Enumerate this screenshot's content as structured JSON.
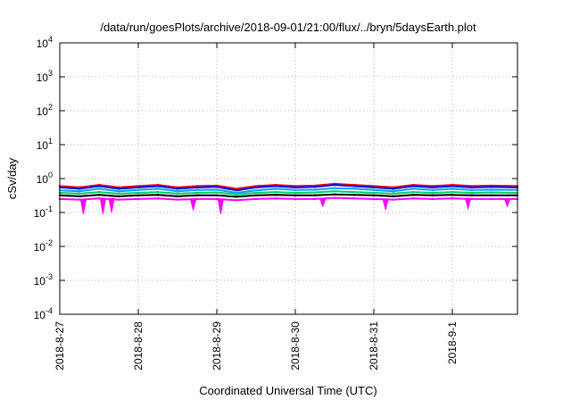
{
  "chart_data": {
    "type": "line",
    "title": "/data/run/goesPlots/archive/2018-09-01/21:00/flux/../bryn/5daysEarth.plot",
    "xlabel": "Coordinated Universal Time (UTC)",
    "ylabel": "cSv/day",
    "yscale": "log",
    "ylim": [
      0.0001,
      10000
    ],
    "xlim_days": [
      0,
      5.83
    ],
    "grid": true,
    "legend": "none",
    "x_tick_labels": [
      "2018-8-27",
      "2018-8-28",
      "2018-8-29",
      "2018-8-30",
      "2018-8-31",
      "2018-9-1"
    ],
    "x_tick_days": [
      0,
      1,
      2,
      3,
      4,
      5
    ],
    "y_ticks": [
      {
        "value": 0.0001,
        "base": "10",
        "exp": "-4"
      },
      {
        "value": 0.001,
        "base": "10",
        "exp": "-3"
      },
      {
        "value": 0.01,
        "base": "10",
        "exp": "-2"
      },
      {
        "value": 0.1,
        "base": "10",
        "exp": "-1"
      },
      {
        "value": 1,
        "base": "10",
        "exp": "0"
      },
      {
        "value": 10,
        "base": "10",
        "exp": "1"
      },
      {
        "value": 100,
        "base": "10",
        "exp": "2"
      },
      {
        "value": 1000,
        "base": "10",
        "exp": "3"
      },
      {
        "value": 10000,
        "base": "10",
        "exp": "4"
      }
    ],
    "x": [
      0.0,
      0.25,
      0.5,
      0.75,
      1.0,
      1.25,
      1.5,
      1.75,
      2.0,
      2.25,
      2.5,
      2.75,
      3.0,
      3.25,
      3.5,
      3.75,
      4.0,
      4.25,
      4.5,
      4.75,
      5.0,
      5.25,
      5.5,
      5.83
    ],
    "series": [
      {
        "color": "#ff0000",
        "values": [
          0.6,
          0.55,
          0.65,
          0.55,
          0.6,
          0.65,
          0.55,
          0.6,
          0.62,
          0.5,
          0.6,
          0.65,
          0.6,
          0.62,
          0.7,
          0.65,
          0.6,
          0.55,
          0.65,
          0.6,
          0.65,
          0.6,
          0.62,
          0.6
        ]
      },
      {
        "color": "#0000ff",
        "values": [
          0.55,
          0.5,
          0.6,
          0.5,
          0.55,
          0.6,
          0.5,
          0.55,
          0.57,
          0.45,
          0.55,
          0.6,
          0.55,
          0.57,
          0.65,
          0.6,
          0.55,
          0.5,
          0.6,
          0.55,
          0.6,
          0.55,
          0.57,
          0.55
        ]
      },
      {
        "color": "#00a0ff",
        "values": [
          0.45,
          0.42,
          0.5,
          0.42,
          0.46,
          0.5,
          0.42,
          0.46,
          0.47,
          0.38,
          0.45,
          0.5,
          0.46,
          0.47,
          0.52,
          0.5,
          0.46,
          0.42,
          0.5,
          0.46,
          0.5,
          0.46,
          0.47,
          0.46
        ]
      },
      {
        "color": "#00cc66",
        "values": [
          0.38,
          0.36,
          0.4,
          0.36,
          0.38,
          0.4,
          0.36,
          0.38,
          0.39,
          0.34,
          0.38,
          0.4,
          0.38,
          0.39,
          0.42,
          0.4,
          0.38,
          0.36,
          0.4,
          0.38,
          0.4,
          0.38,
          0.39,
          0.38
        ]
      },
      {
        "color": "#000000",
        "values": [
          0.32,
          0.3,
          0.33,
          0.3,
          0.32,
          0.33,
          0.3,
          0.32,
          0.32,
          0.29,
          0.32,
          0.33,
          0.32,
          0.32,
          0.34,
          0.33,
          0.32,
          0.3,
          0.33,
          0.32,
          0.33,
          0.32,
          0.32,
          0.32
        ]
      },
      {
        "color": "#ff00ff",
        "values": [
          0.25,
          0.24,
          0.26,
          0.24,
          0.25,
          0.26,
          0.24,
          0.25,
          0.25,
          0.23,
          0.25,
          0.26,
          0.25,
          0.25,
          0.27,
          0.26,
          0.25,
          0.24,
          0.26,
          0.25,
          0.26,
          0.25,
          0.25,
          0.25
        ]
      }
    ],
    "dips": [
      {
        "x": 0.3,
        "y": 0.09
      },
      {
        "x": 0.55,
        "y": 0.09
      },
      {
        "x": 0.66,
        "y": 0.1
      },
      {
        "x": 1.7,
        "y": 0.12
      },
      {
        "x": 2.05,
        "y": 0.09
      },
      {
        "x": 3.35,
        "y": 0.15
      },
      {
        "x": 4.15,
        "y": 0.12
      },
      {
        "x": 5.2,
        "y": 0.13
      },
      {
        "x": 5.7,
        "y": 0.15
      }
    ]
  }
}
